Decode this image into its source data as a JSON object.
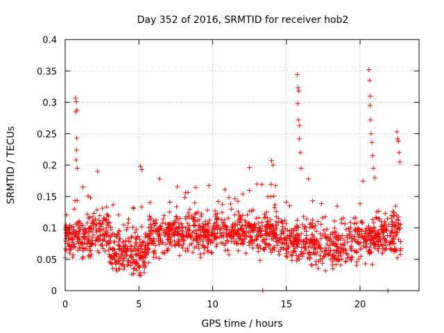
{
  "chart_data": {
    "type": "scatter",
    "title": "Day 352 of 2016, SRMTID for receiver hob2",
    "xlabel": "GPS time / hours",
    "ylabel": "SRMTID / TECUs",
    "xlim": [
      0,
      24
    ],
    "ylim": [
      0,
      0.4
    ],
    "grid": true,
    "x_ticks": [
      0,
      5,
      10,
      15,
      20
    ],
    "x_tick_labels": [
      "0",
      "5",
      "10",
      "15",
      "20"
    ],
    "y_ticks": [
      0,
      0.05,
      0.1,
      0.15,
      0.2,
      0.25,
      0.3,
      0.35,
      0.4
    ],
    "y_tick_labels": [
      "0",
      "0.05",
      "0.1",
      "0.15",
      "0.2",
      "0.25",
      "0.3",
      "0.35",
      "0.4"
    ],
    "series": [
      {
        "name": "SRMTID",
        "marker": "plus",
        "color": "#ff0000",
        "description": "Dense cloud of points roughly between 0.03 and 0.15 TECU, with spikes near 0.8 h, 15.8 h, 20.6 h and 22.6 h.",
        "spikes": [
          {
            "x": [
              0.7,
              0.75,
              0.8,
              0.72,
              0.78,
              0.76,
              0.74,
              0.82
            ],
            "y": [
              0.307,
              0.301,
              0.288,
              0.285,
              0.243,
              0.224,
              0.208,
              0.195
            ]
          },
          {
            "x": [
              15.75,
              15.8,
              15.85,
              15.78,
              15.82,
              15.9,
              15.88,
              15.95,
              16.0
            ],
            "y": [
              0.344,
              0.323,
              0.318,
              0.298,
              0.272,
              0.263,
              0.242,
              0.22,
              0.195
            ]
          },
          {
            "x": [
              20.6,
              20.65,
              20.7,
              20.68,
              20.72,
              20.75,
              20.8,
              20.85,
              20.9,
              21.0
            ],
            "y": [
              0.352,
              0.335,
              0.31,
              0.295,
              0.272,
              0.25,
              0.236,
              0.215,
              0.195,
              0.18
            ]
          },
          {
            "x": [
              22.5,
              22.55,
              22.6,
              22.65,
              22.7
            ],
            "y": [
              0.253,
              0.242,
              0.238,
              0.22,
              0.205
            ]
          },
          {
            "x": [
              1.2,
              2.2,
              5.1,
              5.2,
              6.4,
              12.5,
              13.0,
              14.0,
              14.1,
              16.5
            ],
            "y": [
              0.165,
              0.19,
              0.198,
              0.193,
              0.178,
              0.196,
              0.17,
              0.207,
              0.2,
              0.178
            ]
          },
          {
            "x": [
              13.4,
              21.9
            ],
            "y": [
              0.0,
              0.0
            ]
          }
        ]
      }
    ]
  }
}
